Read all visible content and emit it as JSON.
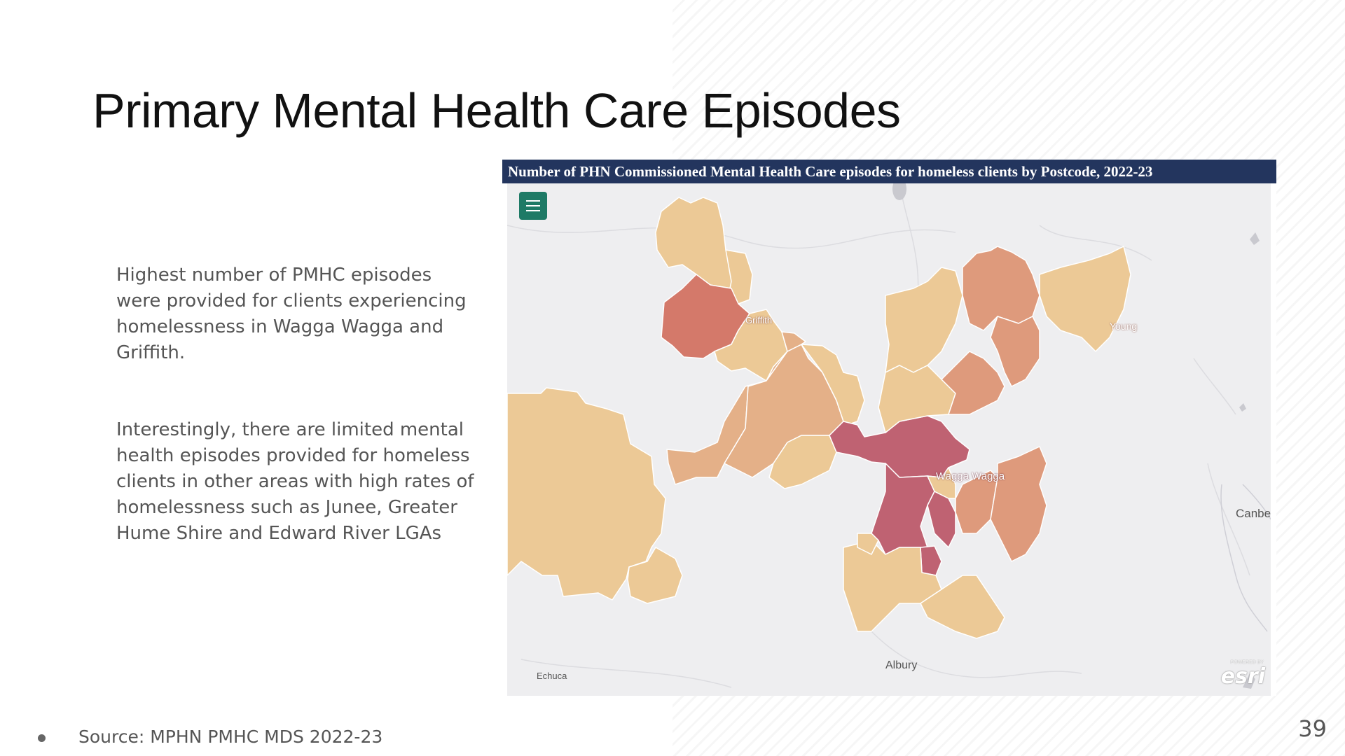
{
  "slide": {
    "title": "Primary Mental Health Care Episodes",
    "paragraphs": [
      "Highest number of PMHC episodes were provided for clients experiencing homelessness in Wagga Wagga and Griffith.",
      "Interestingly, there are limited mental health episodes provided for homeless clients in other areas with high rates of homelessness such as Junee, Greater Hume Shire and Edward River LGAs"
    ],
    "source": "Source: MPHN PMHC MDS 2022-23",
    "page_number": "39"
  },
  "map": {
    "title": "Number of PHN Commissioned Mental Health Care episodes for homeless clients by Postcode, 2022-23",
    "place_labels": {
      "griffith": "Griffith",
      "young": "Young",
      "wagga_wagga": "Wagga Wagga",
      "canberra": "Canbe",
      "albury": "Albury",
      "echuca": "Echuca"
    },
    "attribution": "esri",
    "attribution_small": "POWERED BY",
    "menu_icon": "hamburger-menu-icon",
    "colors": {
      "lowest": "#ecc996",
      "low": "#e4b088",
      "medium": "#de9a7c",
      "high": "#d4796a",
      "highest": "#bf6272",
      "background": "#eeeef0",
      "title_bar": "#23355e",
      "menu_button": "#1e7a66"
    }
  }
}
